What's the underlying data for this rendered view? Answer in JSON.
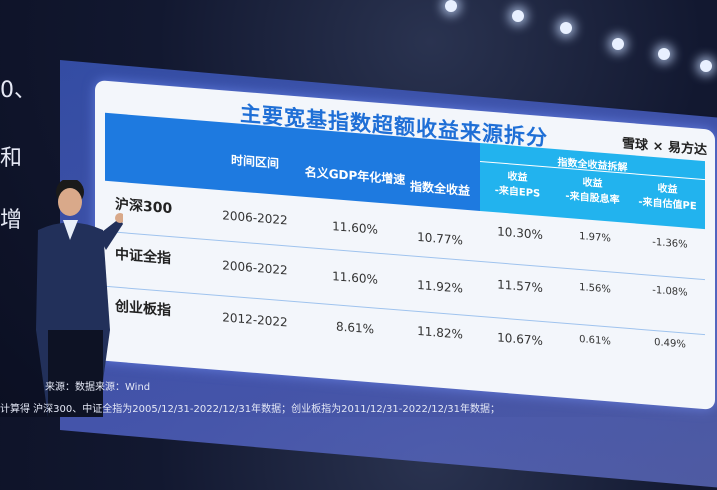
{
  "slide": {
    "title": "主要宽基指数超额收益来源拆分",
    "logo": "雪球 × 易方达",
    "headers": {
      "period": "时间区间",
      "gdp": "名义GDP年化增速",
      "total": "指数全收益",
      "breakdown": "指数全收益拆解",
      "eps": "收益\n-来自EPS",
      "dividend": "收益\n-来自股息率",
      "pe": "收益\n-来自估值PE"
    },
    "rows": [
      {
        "name": "沪深300",
        "period": "2006-2022",
        "gdp": "11.60%",
        "total": "10.77%",
        "eps": "10.30%",
        "dividend": "1.97%",
        "pe": "-1.36%"
      },
      {
        "name": "中证全指",
        "period": "2006-2022",
        "gdp": "11.60%",
        "total": "11.92%",
        "eps": "11.57%",
        "dividend": "1.56%",
        "pe": "-1.08%"
      },
      {
        "name": "创业板指",
        "period": "2012-2022",
        "gdp": "8.61%",
        "total": "11.82%",
        "eps": "10.67%",
        "dividend": "0.61%",
        "pe": "0.49%"
      }
    ]
  },
  "left_fragments": [
    "0、",
    "和",
    "增"
  ],
  "footer": {
    "line1": "来源：数据来源：Wind",
    "line2": "计算得   沪深300、中证全指为2005/12/31-2022/12/31年数据；创业板指为2011/12/31-2022/12/31年数据；"
  },
  "colors": {
    "header_blue": "#1e7ae0",
    "header_cyan": "#22b3ee",
    "title_blue": "#1f6fd6"
  }
}
